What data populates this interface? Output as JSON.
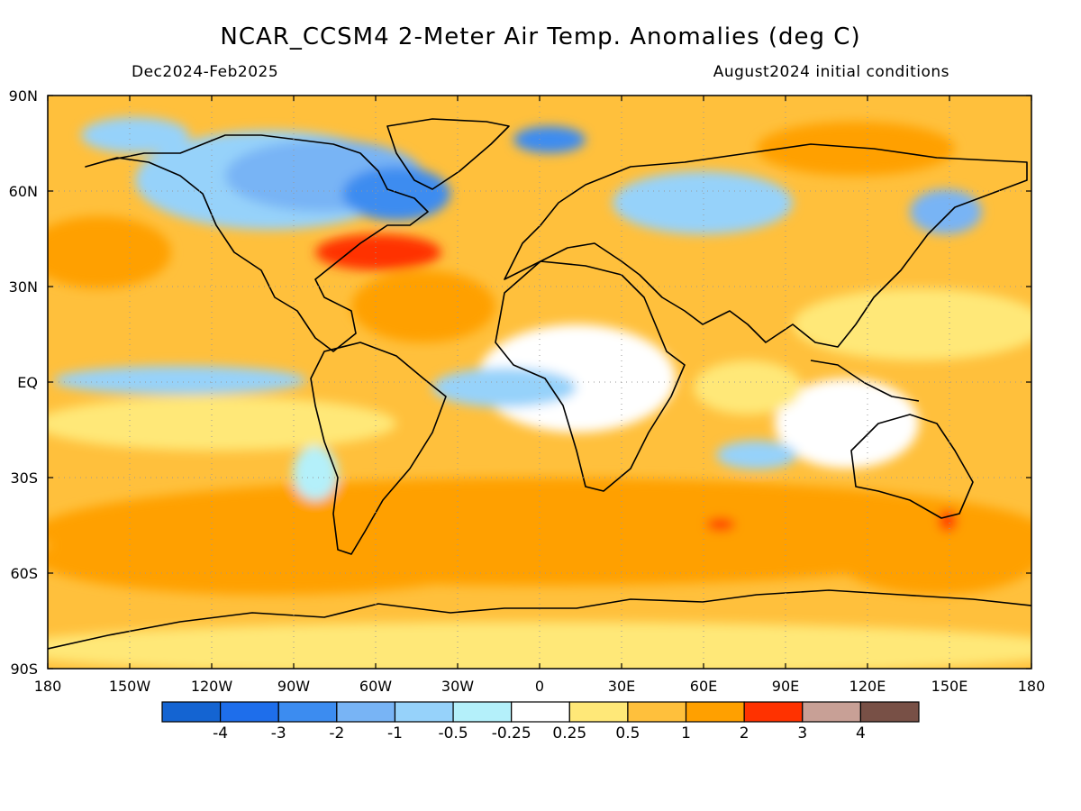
{
  "title": "NCAR_CCSM4 2-Meter Air Temp. Anomalies (deg C)",
  "season": "Dec2024-Feb2025",
  "init": "August2024 initial conditions",
  "lat_labels": [
    "90N",
    "60N",
    "30N",
    "EQ",
    "30S",
    "60S",
    "90S"
  ],
  "lon_labels": [
    "180",
    "150W",
    "120W",
    "90W",
    "60W",
    "30W",
    "0",
    "30E",
    "60E",
    "90E",
    "120E",
    "150E",
    "180"
  ],
  "colorbar": {
    "colors": [
      "#1464d2",
      "#1e6eeb",
      "#3c8cf0",
      "#78b4f5",
      "#96d2fa",
      "#b4f0fa",
      "#ffffff",
      "#ffe878",
      "#ffc03c",
      "#ffa000",
      "#ff3200",
      "#c8a096",
      "#785046"
    ],
    "labels": [
      "-4",
      "-3",
      "-2",
      "-1",
      "-0.5",
      "-0.25",
      "0.25",
      "0.5",
      "1",
      "2",
      "3",
      "4"
    ]
  }
}
